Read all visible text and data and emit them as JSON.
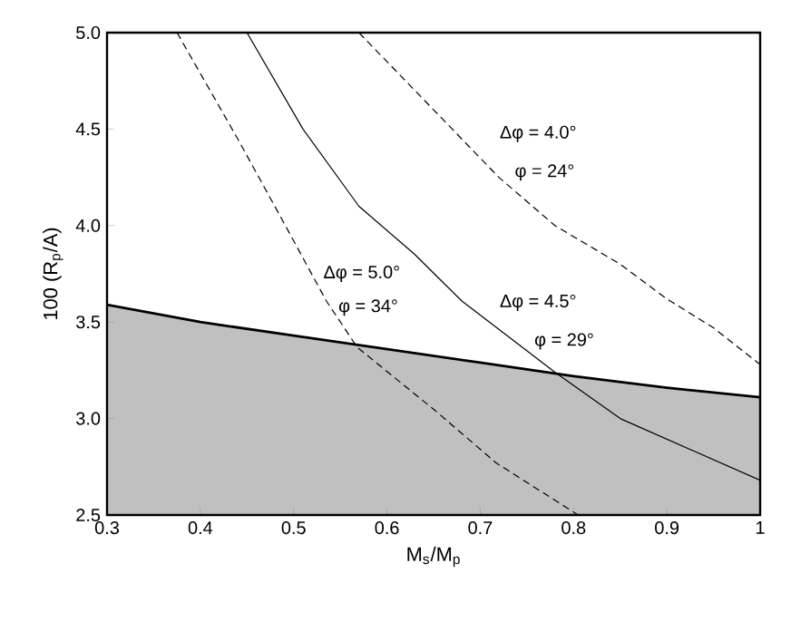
{
  "chart_data": {
    "type": "line",
    "xlabel": "M$_{s}$/M$_{p}$",
    "ylabel": "100 (R$_{p}$/A)",
    "xlim": [
      0.3,
      1
    ],
    "ylim": [
      2.5,
      5
    ],
    "xticks": [
      0.3,
      0.4,
      0.5,
      0.6,
      0.7,
      0.8,
      0.9,
      {
        "value": 1,
        "label": "1"
      }
    ],
    "yticks": [
      2.5,
      {
        "value": 3,
        "label": "3.0"
      },
      3.5,
      {
        "value": 4,
        "label": "4.0"
      },
      4.5,
      {
        "value": 5,
        "label": "5.0"
      }
    ],
    "grid": false,
    "marker": "none",
    "series": [
      {
        "type": "area",
        "color": "#c0c0c0",
        "x": [
          0.3,
          0.4,
          0.5,
          0.6,
          0.7,
          0.8,
          0.9,
          1.0
        ],
        "values": [
          3.59,
          3.5,
          3.43,
          3.36,
          3.29,
          3.22,
          3.16,
          3.11
        ]
      },
      {
        "color": "#000000",
        "line_style": "dashed",
        "x": [
          0.57,
          0.65,
          0.72,
          0.78,
          0.85,
          0.9,
          0.95,
          1.0
        ],
        "values": [
          5.0,
          4.6,
          4.25,
          4.0,
          3.8,
          3.62,
          3.47,
          3.28
        ]
      },
      {
        "color": "#000000",
        "line_style": "solid",
        "x": [
          0.45,
          0.51,
          0.57,
          0.63,
          0.68,
          0.78,
          0.85,
          1.0
        ],
        "values": [
          5.0,
          4.5,
          4.1,
          3.85,
          3.61,
          3.24,
          3.0,
          2.68
        ]
      },
      {
        "color": "#000000",
        "line_style": "dashed",
        "x": [
          0.375,
          0.44,
          0.49,
          0.535,
          0.568,
          0.652,
          0.717,
          0.805
        ],
        "values": [
          5.0,
          4.45,
          4.01,
          3.61,
          3.37,
          3.04,
          2.77,
          2.5
        ]
      }
    ],
    "annotations": [
      "Δφ = 4.0°",
      "φ = 24°",
      "Δφ = 5.0°",
      "φ = 34°",
      "Δφ = 4.5°",
      "φ = 29°"
    ]
  }
}
